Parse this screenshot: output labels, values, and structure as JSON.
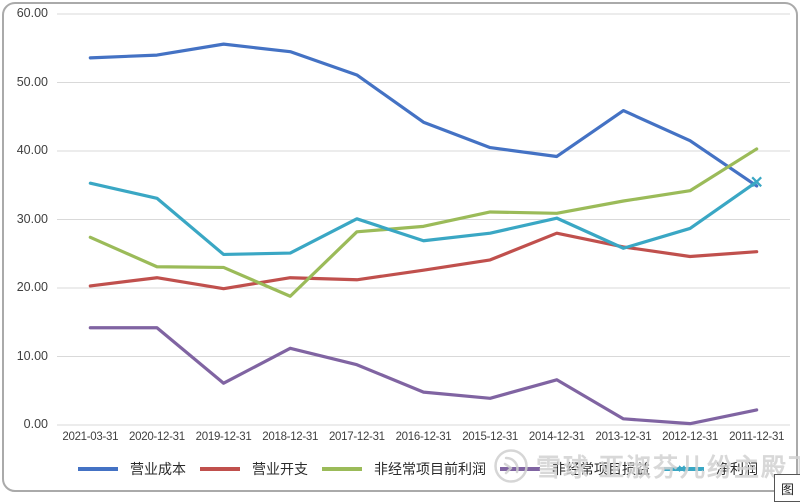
{
  "chart_data": {
    "type": "line",
    "title": "",
    "categories": [
      "2021-03-31",
      "2020-12-31",
      "2019-12-31",
      "2018-12-31",
      "2017-12-31",
      "2016-12-31",
      "2015-12-31",
      "2014-12-31",
      "2013-12-31",
      "2012-12-31",
      "2011-12-31"
    ],
    "series": [
      {
        "name": "营业成本",
        "color": "#4472C4",
        "values": [
          53.6,
          54.0,
          55.6,
          54.5,
          51.1,
          44.2,
          40.5,
          39.2,
          45.9,
          41.5,
          34.9
        ]
      },
      {
        "name": "营业开支",
        "color": "#C0504D",
        "values": [
          20.3,
          21.5,
          19.9,
          21.5,
          21.2,
          22.6,
          24.1,
          28.0,
          26.0,
          24.6,
          25.3
        ]
      },
      {
        "name": "非经常项目前利润",
        "color": "#9BBB59",
        "values": [
          27.4,
          23.1,
          23.0,
          18.8,
          28.2,
          29.0,
          31.1,
          30.9,
          32.7,
          34.2,
          40.3
        ]
      },
      {
        "name": "非经常项目损益",
        "color": "#8064A2",
        "values": [
          14.2,
          14.2,
          6.1,
          11.2,
          8.8,
          4.8,
          3.9,
          6.6,
          0.9,
          0.2,
          2.2
        ]
      },
      {
        "name": "净利润",
        "color": "#3AA7C4",
        "values": [
          35.3,
          33.1,
          24.9,
          25.1,
          30.1,
          26.9,
          28.0,
          30.2,
          25.8,
          28.7,
          35.5
        ],
        "end_marker": "x"
      }
    ],
    "ylim": [
      0,
      60
    ],
    "y_ticks": [
      "60.00",
      "50.00",
      "40.00",
      "30.00",
      "20.00",
      "10.00",
      "0.00"
    ],
    "xlabel": "",
    "ylabel": "",
    "grid": true,
    "legend_position": "bottom"
  },
  "watermark": {
    "logo": "xueqiu-logo",
    "text": "雪球 亚淑芬儿纷主殿下"
  },
  "corner_button": {
    "label": "图"
  },
  "colors": {
    "gridline": "#D9D9D9",
    "axis_text": "#3F3F3F",
    "frame_border": "#AAAAAA",
    "watermark": "#D2D2D2"
  }
}
